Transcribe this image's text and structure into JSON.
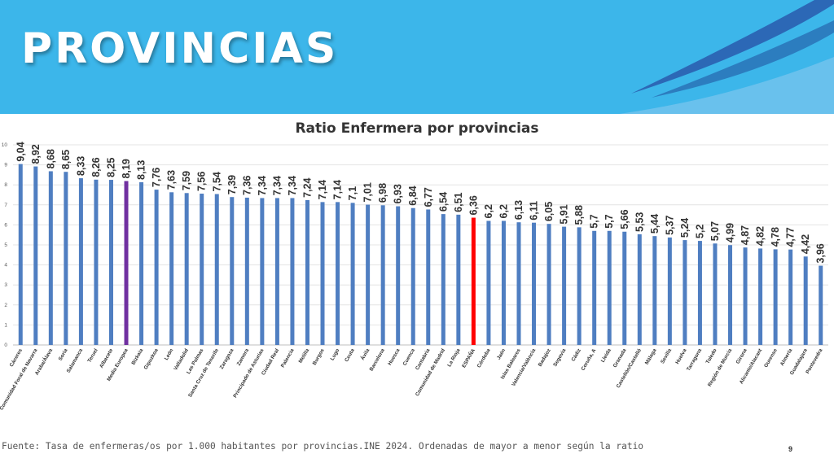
{
  "header": {
    "title": "PROVINCIAS"
  },
  "footer": {
    "source": "Fuente: Tasa de enfermeras/os por 1.000 habitantes por provincias.INE 2024. Ordenadas de mayor a menor según la ratio",
    "page_number": "9"
  },
  "colors": {
    "banner": "#3cb6ea",
    "default_bar": "#4f7ec1",
    "media_europea_bar": "#7030a0",
    "espana_bar": "#ff0000"
  },
  "chart_data": {
    "type": "bar",
    "title": "Ratio Enfermera por provincias",
    "xlabel": "",
    "ylabel": "",
    "ylim": [
      0,
      10
    ],
    "yticks": [
      0,
      1,
      2,
      3,
      4,
      5,
      6,
      7,
      8,
      9,
      10
    ],
    "grid": true,
    "legend": "none",
    "categories": [
      "Cáceres",
      "Comunidad Foral de Navarra",
      "Araba/Álava",
      "Soria",
      "Salamanca",
      "Teruel",
      "Albacete",
      "Media Europea",
      "Bizkaia",
      "Gipuzkoa",
      "León",
      "Valladolid",
      "Las Palmas",
      "Santa Cruz de Tenerife",
      "Zaragoza",
      "Zamora",
      "Principado de Asturias",
      "Ciudad Real",
      "Palencia",
      "Melilla",
      "Burgos",
      "Lugo",
      "Ceuta",
      "Ávila",
      "Barcelona",
      "Huesca",
      "Cuenca",
      "Cantabria",
      "Comunidad de Madrid",
      "La Rioja",
      "ESPAÑA",
      "Córdoba",
      "Jaén",
      "Islas Baleares",
      "Valencia/València",
      "Badajoz",
      "Segovia",
      "Cádiz",
      "Coruña, A",
      "Lleida",
      "Granada",
      "Castellón/Castelló",
      "Málaga",
      "Sevilla",
      "Huelva",
      "Tarragona",
      "Toledo",
      "Región de Murcia",
      "Girona",
      "Alicante/Alacant",
      "Ourense",
      "Almería",
      "Guadalajara",
      "Pontevedra"
    ],
    "values": [
      9.04,
      8.92,
      8.68,
      8.65,
      8.33,
      8.26,
      8.25,
      8.19,
      8.13,
      7.76,
      7.63,
      7.59,
      7.56,
      7.54,
      7.39,
      7.36,
      7.34,
      7.34,
      7.34,
      7.24,
      7.14,
      7.14,
      7.1,
      7.01,
      6.98,
      6.93,
      6.84,
      6.77,
      6.54,
      6.51,
      6.36,
      6.2,
      6.2,
      6.13,
      6.11,
      6.05,
      5.91,
      5.88,
      5.7,
      5.7,
      5.66,
      5.53,
      5.44,
      5.37,
      5.24,
      5.2,
      5.07,
      4.99,
      4.87,
      4.82,
      4.78,
      4.77,
      4.42,
      3.96
    ],
    "data_labels": [
      "9,04",
      "8,92",
      "8,68",
      "8,65",
      "8,33",
      "8,26",
      "8,25",
      "8,19",
      "8,13",
      "7,76",
      "7,63",
      "7,59",
      "7,56",
      "7,54",
      "7,39",
      "7,36",
      "7,34",
      "7,34",
      "7,34",
      "7,24",
      "7,14",
      "7,14",
      "7,1",
      "7,01",
      "6,98",
      "6,93",
      "6,84",
      "6,77",
      "6,54",
      "6,51",
      "6,36",
      "6,2",
      "6,2",
      "6,13",
      "6,11",
      "6,05",
      "5,91",
      "5,88",
      "5,7",
      "5,7",
      "5,66",
      "5,53",
      "5,44",
      "5,37",
      "5,24",
      "5,2",
      "5,07",
      "4,99",
      "4,87",
      "4,82",
      "4,78",
      "4,77",
      "4,42",
      "3,96"
    ],
    "highlight": {
      "Media Europea": "#7030a0",
      "ESPAÑA": "#ff0000"
    }
  }
}
